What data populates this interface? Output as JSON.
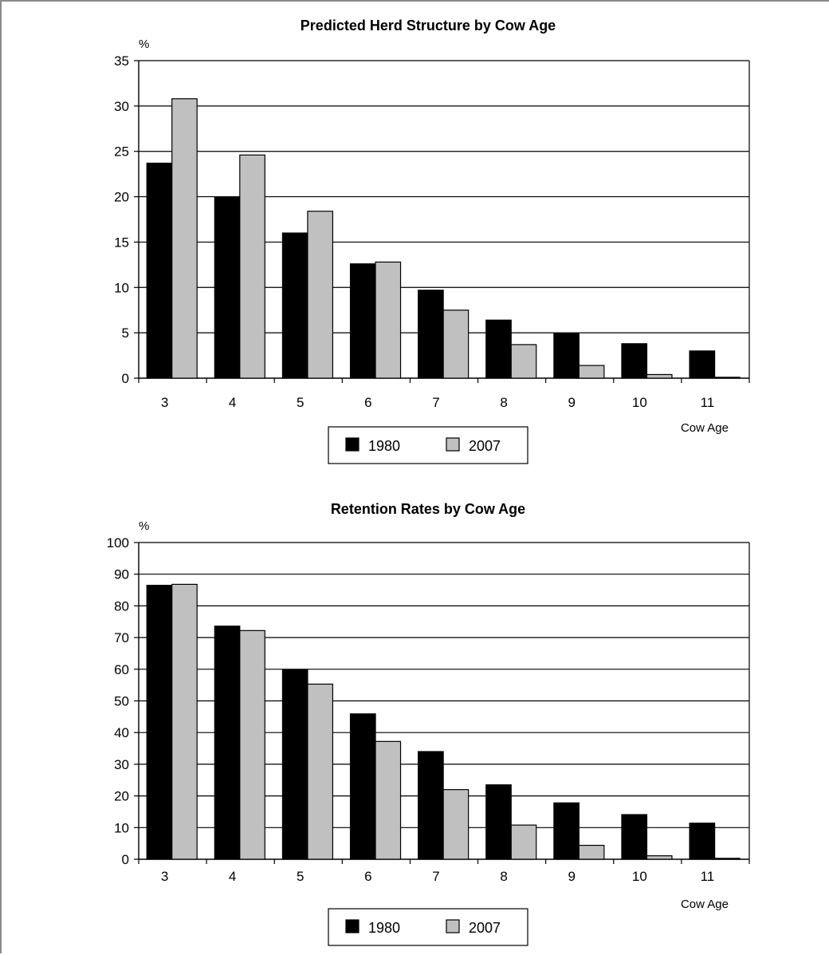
{
  "chart_data": [
    {
      "type": "bar",
      "title": "Predicted Herd Structure by Cow Age",
      "ylabel": "%",
      "xlabel": "Cow Age",
      "categories": [
        "3",
        "4",
        "5",
        "6",
        "7",
        "8",
        "9",
        "10",
        "11"
      ],
      "ylim": [
        0,
        35
      ],
      "yticks": [
        0,
        5,
        10,
        15,
        20,
        25,
        30,
        35
      ],
      "grid": true,
      "legend_position": "bottom",
      "series": [
        {
          "name": "1980",
          "color": "#000000",
          "values": [
            23.7,
            19.9,
            16.0,
            12.6,
            9.7,
            6.4,
            4.9,
            3.8,
            3.0
          ]
        },
        {
          "name": "2007",
          "color": "#c0c0c0",
          "values": [
            30.8,
            24.6,
            18.4,
            12.8,
            7.5,
            3.7,
            1.4,
            0.4,
            0.1
          ]
        }
      ]
    },
    {
      "type": "bar",
      "title": "Retention Rates by Cow Age",
      "ylabel": "%",
      "xlabel": "Cow Age",
      "categories": [
        "3",
        "4",
        "5",
        "6",
        "7",
        "8",
        "9",
        "10",
        "11"
      ],
      "ylim": [
        0,
        100
      ],
      "yticks": [
        0,
        10,
        20,
        30,
        40,
        50,
        60,
        70,
        80,
        90,
        100
      ],
      "grid": true,
      "legend_position": "bottom",
      "series": [
        {
          "name": "1980",
          "color": "#000000",
          "values": [
            86.5,
            73.6,
            59.8,
            45.9,
            34.0,
            23.5,
            17.8,
            14.1,
            11.4
          ]
        },
        {
          "name": "2007",
          "color": "#c0c0c0",
          "values": [
            86.8,
            72.2,
            55.3,
            37.2,
            22.0,
            10.8,
            4.4,
            1.1,
            0.3
          ]
        }
      ]
    }
  ]
}
